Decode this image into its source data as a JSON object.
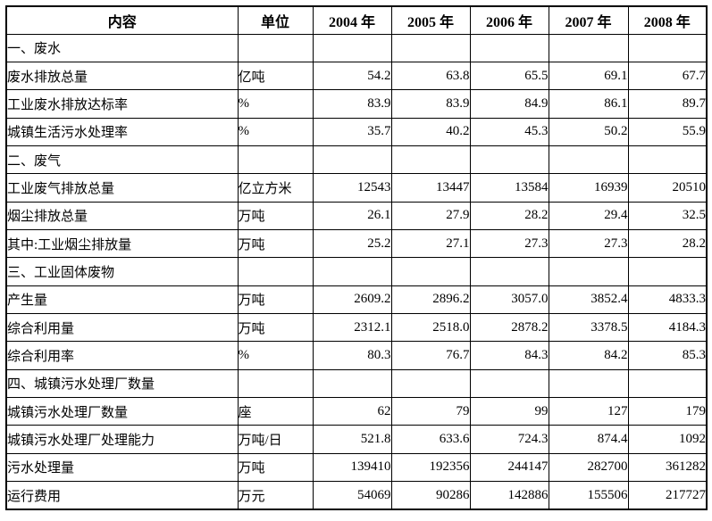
{
  "table": {
    "columns": [
      {
        "label": "内容"
      },
      {
        "label": "单位"
      },
      {
        "label": "2004 年"
      },
      {
        "label": "2005 年"
      },
      {
        "label": "2006 年"
      },
      {
        "label": "2007 年"
      },
      {
        "label": "2008 年"
      }
    ],
    "rows": [
      {
        "type": "section",
        "label": "一、废水",
        "unit": "",
        "values": [
          "",
          "",
          "",
          "",
          ""
        ]
      },
      {
        "type": "data",
        "label": "废水排放总量",
        "unit": "亿吨",
        "values": [
          "54.2",
          "63.8",
          "65.5",
          "69.1",
          "67.7"
        ]
      },
      {
        "type": "data",
        "label": "工业废水排放达标率",
        "unit": "%",
        "values": [
          "83.9",
          "83.9",
          "84.9",
          "86.1",
          "89.7"
        ]
      },
      {
        "type": "data",
        "label": "城镇生活污水处理率",
        "unit": "%",
        "values": [
          "35.7",
          "40.2",
          "45.3",
          "50.2",
          "55.9"
        ]
      },
      {
        "type": "section",
        "label": "二、废气",
        "unit": "",
        "values": [
          "",
          "",
          "",
          "",
          ""
        ]
      },
      {
        "type": "data",
        "label": "工业废气排放总量",
        "unit": "亿立方米",
        "values": [
          "12543",
          "13447",
          "13584",
          "16939",
          "20510"
        ]
      },
      {
        "type": "data",
        "label": "烟尘排放总量",
        "unit": "万吨",
        "values": [
          "26.1",
          "27.9",
          "28.2",
          "29.4",
          "32.5"
        ]
      },
      {
        "type": "data",
        "label": "其中:工业烟尘排放量",
        "unit": "万吨",
        "values": [
          "25.2",
          "27.1",
          "27.3",
          "27.3",
          "28.2"
        ]
      },
      {
        "type": "section",
        "label": "三、工业固体废物",
        "unit": "",
        "values": [
          "",
          "",
          "",
          "",
          ""
        ]
      },
      {
        "type": "data",
        "label": "产生量",
        "unit": "万吨",
        "values": [
          "2609.2",
          "2896.2",
          "3057.0",
          "3852.4",
          "4833.3"
        ]
      },
      {
        "type": "data",
        "label": "综合利用量",
        "unit": "万吨",
        "values": [
          "2312.1",
          "2518.0",
          "2878.2",
          "3378.5",
          "4184.3"
        ]
      },
      {
        "type": "data",
        "label": "综合利用率",
        "unit": "%",
        "values": [
          "80.3",
          "76.7",
          "84.3",
          "84.2",
          "85.3"
        ]
      },
      {
        "type": "section",
        "label": "四、城镇污水处理厂数量",
        "unit": "",
        "values": [
          "",
          "",
          "",
          "",
          ""
        ]
      },
      {
        "type": "data",
        "label": "城镇污水处理厂数量",
        "unit": "座",
        "values": [
          "62",
          "79",
          "99",
          "127",
          "179"
        ]
      },
      {
        "type": "data",
        "label": "城镇污水处理厂处理能力",
        "unit": "万吨/日",
        "values": [
          "521.8",
          "633.6",
          "724.3",
          "874.4",
          "1092"
        ]
      },
      {
        "type": "data",
        "label": "污水处理量",
        "unit": "万吨",
        "values": [
          "139410",
          "192356",
          "244147",
          "282700",
          "361282"
        ]
      },
      {
        "type": "data",
        "label": "运行费用",
        "unit": "万元",
        "values": [
          "54069",
          "90286",
          "142886",
          "155506",
          "217727"
        ]
      }
    ]
  },
  "colors": {
    "border": "#000000",
    "text": "#000000",
    "background": "#ffffff"
  }
}
